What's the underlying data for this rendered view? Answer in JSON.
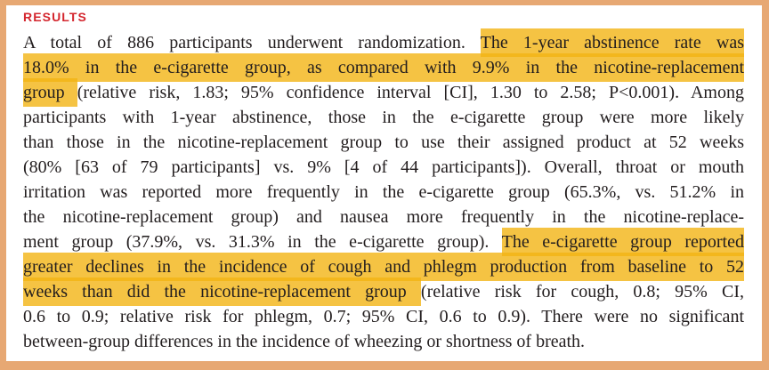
{
  "document": {
    "section_heading": "RESULTS",
    "colors": {
      "border": "#e7a873",
      "heading": "#d4262e",
      "highlight": "#f5c343",
      "text": "#221d1e",
      "background": "#ffffff"
    },
    "lines": [
      {
        "segments": [
          {
            "text": "A total of 886 participants underwent randomization. ",
            "highlight": false
          },
          {
            "text": "The 1-year abstinence rate was",
            "highlight": true
          }
        ]
      },
      {
        "segments": [
          {
            "text": "18.0% in the e-cigarette group, as compared with 9.9% in the nicotine-replacement",
            "highlight": true
          }
        ]
      },
      {
        "segments": [
          {
            "text": "group ",
            "highlight": true
          },
          {
            "text": "(relative risk, 1.83; 95% confidence interval [CI], 1.30 to 2.58; P<0.001). Among",
            "highlight": false
          }
        ]
      },
      {
        "segments": [
          {
            "text": "participants with 1-year abstinence, those in the e-cigarette group were more likely",
            "highlight": false
          }
        ]
      },
      {
        "segments": [
          {
            "text": "than those in the nicotine-replacement group to use their assigned product at 52 weeks",
            "highlight": false
          }
        ]
      },
      {
        "segments": [
          {
            "text": "(80% [63 of 79 participants] vs. 9% [4 of 44 participants]). Overall, throat or mouth",
            "highlight": false
          }
        ]
      },
      {
        "segments": [
          {
            "text": "irritation was reported more frequently in the e-cigarette group (65.3%, vs. 51.2% in",
            "highlight": false
          }
        ]
      },
      {
        "segments": [
          {
            "text": "the nicotine-replacement group) and nausea more frequently in the nicotine-replace-",
            "highlight": false
          }
        ]
      },
      {
        "segments": [
          {
            "text": "ment group (37.9%, vs. 31.3% in the e-cigarette group). ",
            "highlight": false
          },
          {
            "text": "The e-cigarette group reported",
            "highlight": true
          }
        ]
      },
      {
        "segments": [
          {
            "text": "greater declines in the incidence of cough and phlegm production from baseline to 52",
            "highlight": true
          }
        ]
      },
      {
        "segments": [
          {
            "text": "weeks than did the nicotine-replacement group ",
            "highlight": true
          },
          {
            "text": "(relative risk for cough, 0.8; 95% CI,",
            "highlight": false
          }
        ]
      },
      {
        "segments": [
          {
            "text": "0.6 to 0.9; relative risk for phlegm, 0.7; 95% CI, 0.6 to 0.9). There were no significant",
            "highlight": false
          }
        ]
      },
      {
        "segments": [
          {
            "text": "between-group differences in the incidence of wheezing or shortness of breath.",
            "highlight": false
          }
        ]
      }
    ]
  }
}
